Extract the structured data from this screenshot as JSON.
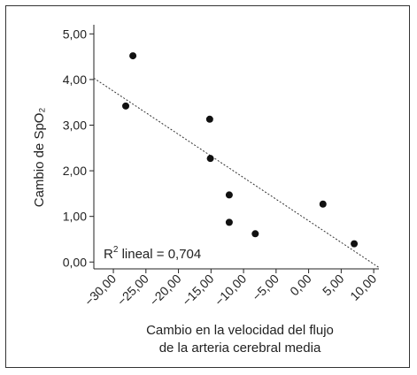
{
  "chart_data": {
    "type": "scatter",
    "title": "",
    "xlabel_lines": [
      "Cambio en la velocidad del flujo",
      "de la arteria cerebral media"
    ],
    "ylabel": "Cambio de SpO₂",
    "xlim": [
      -33,
      10.8
    ],
    "ylim": [
      -0.15,
      5.2
    ],
    "x_ticks": [
      -30,
      -25,
      -20,
      -15,
      -10,
      -5,
      0,
      5,
      10
    ],
    "x_tick_labels": [
      "−30,00",
      "−25,00",
      "−20,00",
      "−15,00",
      "−10,00",
      "−5,00",
      "0,00",
      "5,00",
      "10,00"
    ],
    "y_ticks": [
      0,
      1,
      2,
      3,
      4,
      5
    ],
    "y_tick_labels": [
      "0,00",
      "1,00",
      "2,00",
      "3,00",
      "4,00",
      "5,00"
    ],
    "points": [
      {
        "x": -27,
        "y": 4.52
      },
      {
        "x": -28.1,
        "y": 3.42
      },
      {
        "x": -15.2,
        "y": 3.13
      },
      {
        "x": -15.1,
        "y": 2.27
      },
      {
        "x": -12.2,
        "y": 1.47
      },
      {
        "x": -12.2,
        "y": 0.87
      },
      {
        "x": -8.2,
        "y": 0.62
      },
      {
        "x": 2.2,
        "y": 1.27
      },
      {
        "x": 7.0,
        "y": 0.4
      }
    ],
    "fit_line": {
      "x": [
        -33,
        10.8
      ],
      "y": [
        4.03,
        -0.12
      ]
    },
    "annotation": {
      "prefix": "R",
      "sup": "2",
      "suffix": " lineal = 0,704"
    },
    "grid": false,
    "colors": {
      "points": "#111111",
      "fit": "#333333",
      "axis": "#222222"
    }
  }
}
